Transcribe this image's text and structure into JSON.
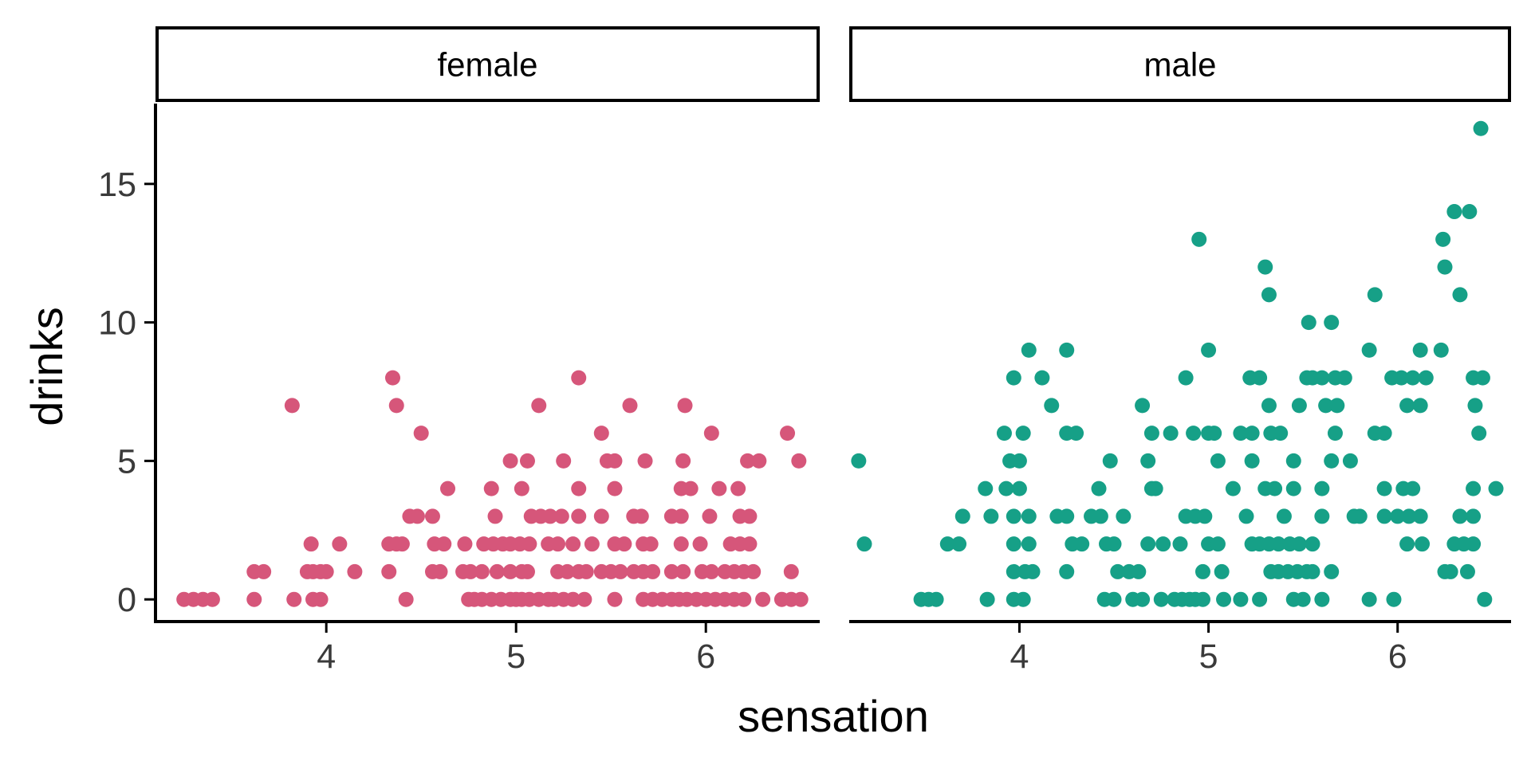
{
  "chart_data": {
    "type": "scatter",
    "xlabel": "sensation",
    "ylabel": "drinks",
    "xlim": [
      3.1,
      6.6
    ],
    "ylim": [
      -0.8,
      17.9
    ],
    "xticks": [
      4,
      5,
      6
    ],
    "yticks": [
      0,
      5,
      10,
      15
    ],
    "grid": false,
    "legend": "none",
    "facets": [
      {
        "name": "female",
        "color": "#d6567a",
        "points": [
          [
            3.25,
            0
          ],
          [
            3.3,
            0
          ],
          [
            3.35,
            0
          ],
          [
            3.4,
            0
          ],
          [
            3.62,
            0
          ],
          [
            3.83,
            0
          ],
          [
            3.93,
            0
          ],
          [
            3.97,
            0
          ],
          [
            4.42,
            0
          ],
          [
            4.75,
            0
          ],
          [
            4.78,
            0
          ],
          [
            4.82,
            0
          ],
          [
            4.87,
            0
          ],
          [
            4.92,
            0
          ],
          [
            4.97,
            0
          ],
          [
            5.0,
            0
          ],
          [
            5.03,
            0
          ],
          [
            5.07,
            0
          ],
          [
            5.12,
            0
          ],
          [
            5.17,
            0
          ],
          [
            5.2,
            0
          ],
          [
            5.25,
            0
          ],
          [
            5.3,
            0
          ],
          [
            5.36,
            0
          ],
          [
            5.52,
            0
          ],
          [
            5.67,
            0
          ],
          [
            5.72,
            0
          ],
          [
            5.77,
            0
          ],
          [
            5.82,
            0
          ],
          [
            5.86,
            0
          ],
          [
            5.9,
            0
          ],
          [
            5.95,
            0
          ],
          [
            6.0,
            0
          ],
          [
            6.05,
            0
          ],
          [
            6.1,
            0
          ],
          [
            6.15,
            0
          ],
          [
            6.2,
            0
          ],
          [
            6.3,
            0
          ],
          [
            6.4,
            0
          ],
          [
            6.45,
            0
          ],
          [
            6.5,
            0
          ],
          [
            3.62,
            1
          ],
          [
            3.67,
            1
          ],
          [
            3.9,
            1
          ],
          [
            3.93,
            1
          ],
          [
            3.97,
            1
          ],
          [
            4.0,
            1
          ],
          [
            4.15,
            1
          ],
          [
            4.33,
            1
          ],
          [
            4.56,
            1
          ],
          [
            4.6,
            1
          ],
          [
            4.72,
            1
          ],
          [
            4.76,
            1
          ],
          [
            4.82,
            1
          ],
          [
            4.9,
            1
          ],
          [
            4.97,
            1
          ],
          [
            5.03,
            1
          ],
          [
            5.06,
            1
          ],
          [
            5.22,
            1
          ],
          [
            5.27,
            1
          ],
          [
            5.33,
            1
          ],
          [
            5.37,
            1
          ],
          [
            5.45,
            1
          ],
          [
            5.5,
            1
          ],
          [
            5.55,
            1
          ],
          [
            5.62,
            1
          ],
          [
            5.67,
            1
          ],
          [
            5.72,
            1
          ],
          [
            5.82,
            1
          ],
          [
            5.88,
            1
          ],
          [
            5.98,
            1
          ],
          [
            6.03,
            1
          ],
          [
            6.1,
            1
          ],
          [
            6.15,
            1
          ],
          [
            6.2,
            1
          ],
          [
            6.25,
            1
          ],
          [
            6.45,
            1
          ],
          [
            3.92,
            2
          ],
          [
            4.07,
            2
          ],
          [
            4.33,
            2
          ],
          [
            4.37,
            2
          ],
          [
            4.4,
            2
          ],
          [
            4.57,
            2
          ],
          [
            4.62,
            2
          ],
          [
            4.73,
            2
          ],
          [
            4.83,
            2
          ],
          [
            4.88,
            2
          ],
          [
            4.93,
            2
          ],
          [
            4.97,
            2
          ],
          [
            5.02,
            2
          ],
          [
            5.07,
            2
          ],
          [
            5.17,
            2
          ],
          [
            5.22,
            2
          ],
          [
            5.3,
            2
          ],
          [
            5.4,
            2
          ],
          [
            5.52,
            2
          ],
          [
            5.57,
            2
          ],
          [
            5.67,
            2
          ],
          [
            5.71,
            2
          ],
          [
            5.87,
            2
          ],
          [
            5.97,
            2
          ],
          [
            6.13,
            2
          ],
          [
            6.18,
            2
          ],
          [
            6.23,
            2
          ],
          [
            4.44,
            3
          ],
          [
            4.48,
            3
          ],
          [
            4.56,
            3
          ],
          [
            4.89,
            3
          ],
          [
            5.08,
            3
          ],
          [
            5.13,
            3
          ],
          [
            5.18,
            3
          ],
          [
            5.24,
            3
          ],
          [
            5.33,
            3
          ],
          [
            5.45,
            3
          ],
          [
            5.62,
            3
          ],
          [
            5.66,
            3
          ],
          [
            5.82,
            3
          ],
          [
            5.87,
            3
          ],
          [
            6.02,
            3
          ],
          [
            6.18,
            3
          ],
          [
            6.23,
            3
          ],
          [
            4.87,
            4
          ],
          [
            5.03,
            4
          ],
          [
            5.33,
            4
          ],
          [
            5.52,
            4
          ],
          [
            5.87,
            4
          ],
          [
            5.92,
            4
          ],
          [
            6.07,
            4
          ],
          [
            6.17,
            4
          ],
          [
            4.64,
            4
          ],
          [
            4.97,
            5
          ],
          [
            5.06,
            5
          ],
          [
            5.25,
            5
          ],
          [
            5.48,
            5
          ],
          [
            5.52,
            5
          ],
          [
            5.68,
            5
          ],
          [
            5.88,
            5
          ],
          [
            6.22,
            5
          ],
          [
            6.28,
            5
          ],
          [
            6.49,
            5
          ],
          [
            4.5,
            6
          ],
          [
            5.45,
            6
          ],
          [
            6.03,
            6
          ],
          [
            6.43,
            6
          ],
          [
            3.82,
            7
          ],
          [
            4.37,
            7
          ],
          [
            5.12,
            7
          ],
          [
            5.6,
            7
          ],
          [
            5.89,
            7
          ],
          [
            4.35,
            8
          ],
          [
            5.33,
            8
          ]
        ]
      },
      {
        "name": "male",
        "color": "#16a087",
        "points": [
          [
            3.15,
            5
          ],
          [
            3.18,
            2
          ],
          [
            3.48,
            0
          ],
          [
            3.52,
            0
          ],
          [
            3.56,
            0
          ],
          [
            3.83,
            0
          ],
          [
            3.97,
            0
          ],
          [
            4.02,
            0
          ],
          [
            4.45,
            0
          ],
          [
            4.5,
            0
          ],
          [
            4.6,
            0
          ],
          [
            4.65,
            0
          ],
          [
            4.75,
            0
          ],
          [
            4.82,
            0
          ],
          [
            4.86,
            0
          ],
          [
            4.9,
            0
          ],
          [
            4.93,
            0
          ],
          [
            4.97,
            0
          ],
          [
            5.08,
            0
          ],
          [
            5.17,
            0
          ],
          [
            5.27,
            0
          ],
          [
            5.45,
            0
          ],
          [
            5.5,
            0
          ],
          [
            5.6,
            0
          ],
          [
            5.85,
            0
          ],
          [
            5.98,
            0
          ],
          [
            6.46,
            0
          ],
          [
            3.97,
            1
          ],
          [
            4.03,
            1
          ],
          [
            4.07,
            1
          ],
          [
            4.25,
            1
          ],
          [
            4.52,
            1
          ],
          [
            4.58,
            1
          ],
          [
            4.63,
            1
          ],
          [
            4.97,
            1
          ],
          [
            5.07,
            1
          ],
          [
            5.33,
            1
          ],
          [
            5.37,
            1
          ],
          [
            5.42,
            1
          ],
          [
            5.47,
            1
          ],
          [
            5.52,
            1
          ],
          [
            5.55,
            1
          ],
          [
            5.65,
            1
          ],
          [
            6.25,
            1
          ],
          [
            6.28,
            1
          ],
          [
            6.37,
            1
          ],
          [
            3.62,
            2
          ],
          [
            3.68,
            2
          ],
          [
            3.97,
            2
          ],
          [
            4.05,
            2
          ],
          [
            4.28,
            2
          ],
          [
            4.33,
            2
          ],
          [
            4.46,
            2
          ],
          [
            4.5,
            2
          ],
          [
            4.68,
            2
          ],
          [
            4.76,
            2
          ],
          [
            4.85,
            2
          ],
          [
            5.0,
            2
          ],
          [
            5.05,
            2
          ],
          [
            5.23,
            2
          ],
          [
            5.27,
            2
          ],
          [
            5.32,
            2
          ],
          [
            5.37,
            2
          ],
          [
            5.43,
            2
          ],
          [
            5.48,
            2
          ],
          [
            5.55,
            2
          ],
          [
            6.05,
            2
          ],
          [
            6.13,
            2
          ],
          [
            6.3,
            2
          ],
          [
            6.35,
            2
          ],
          [
            6.4,
            2
          ],
          [
            3.7,
            3
          ],
          [
            3.85,
            3
          ],
          [
            3.97,
            3
          ],
          [
            4.05,
            3
          ],
          [
            4.2,
            3
          ],
          [
            4.25,
            3
          ],
          [
            4.38,
            3
          ],
          [
            4.43,
            3
          ],
          [
            4.55,
            3
          ],
          [
            4.88,
            3
          ],
          [
            4.93,
            3
          ],
          [
            4.98,
            3
          ],
          [
            5.2,
            3
          ],
          [
            5.4,
            3
          ],
          [
            5.6,
            3
          ],
          [
            5.77,
            3
          ],
          [
            5.8,
            3
          ],
          [
            5.93,
            3
          ],
          [
            6.0,
            3
          ],
          [
            6.06,
            3
          ],
          [
            6.12,
            3
          ],
          [
            6.33,
            3
          ],
          [
            6.4,
            3
          ],
          [
            3.82,
            4
          ],
          [
            3.93,
            4
          ],
          [
            4.0,
            4
          ],
          [
            4.42,
            4
          ],
          [
            4.7,
            4
          ],
          [
            4.72,
            4
          ],
          [
            5.13,
            4
          ],
          [
            5.3,
            4
          ],
          [
            5.35,
            4
          ],
          [
            5.45,
            4
          ],
          [
            5.6,
            4
          ],
          [
            5.93,
            4
          ],
          [
            6.03,
            4
          ],
          [
            6.08,
            4
          ],
          [
            6.4,
            4
          ],
          [
            6.52,
            4
          ],
          [
            3.95,
            5
          ],
          [
            4.0,
            5
          ],
          [
            4.48,
            5
          ],
          [
            4.68,
            5
          ],
          [
            5.05,
            5
          ],
          [
            5.23,
            5
          ],
          [
            5.45,
            5
          ],
          [
            5.65,
            5
          ],
          [
            5.75,
            5
          ],
          [
            3.92,
            6
          ],
          [
            4.02,
            6
          ],
          [
            4.25,
            6
          ],
          [
            4.3,
            6
          ],
          [
            4.7,
            6
          ],
          [
            4.8,
            6
          ],
          [
            4.92,
            6
          ],
          [
            5.0,
            6
          ],
          [
            5.03,
            6
          ],
          [
            5.17,
            6
          ],
          [
            5.23,
            6
          ],
          [
            5.33,
            6
          ],
          [
            5.38,
            6
          ],
          [
            5.67,
            6
          ],
          [
            5.88,
            6
          ],
          [
            5.93,
            6
          ],
          [
            6.43,
            6
          ],
          [
            4.17,
            7
          ],
          [
            4.65,
            7
          ],
          [
            5.32,
            7
          ],
          [
            5.48,
            7
          ],
          [
            5.62,
            7
          ],
          [
            5.68,
            7
          ],
          [
            6.05,
            7
          ],
          [
            6.12,
            7
          ],
          [
            6.41,
            7
          ],
          [
            3.97,
            8
          ],
          [
            4.12,
            8
          ],
          [
            4.88,
            8
          ],
          [
            5.22,
            8
          ],
          [
            5.27,
            8
          ],
          [
            5.52,
            8
          ],
          [
            5.55,
            8
          ],
          [
            5.6,
            8
          ],
          [
            5.67,
            8
          ],
          [
            5.72,
            8
          ],
          [
            5.97,
            8
          ],
          [
            6.02,
            8
          ],
          [
            6.08,
            8
          ],
          [
            6.15,
            8
          ],
          [
            6.4,
            8
          ],
          [
            6.45,
            8
          ],
          [
            4.05,
            9
          ],
          [
            4.25,
            9
          ],
          [
            5.0,
            9
          ],
          [
            5.85,
            9
          ],
          [
            6.12,
            9
          ],
          [
            6.23,
            9
          ],
          [
            5.53,
            10
          ],
          [
            5.65,
            10
          ],
          [
            5.32,
            11
          ],
          [
            5.88,
            11
          ],
          [
            6.33,
            11
          ],
          [
            5.3,
            12
          ],
          [
            6.25,
            12
          ],
          [
            4.95,
            13
          ],
          [
            6.24,
            13
          ],
          [
            6.3,
            14
          ],
          [
            6.38,
            14
          ],
          [
            6.44,
            17
          ]
        ]
      }
    ]
  }
}
